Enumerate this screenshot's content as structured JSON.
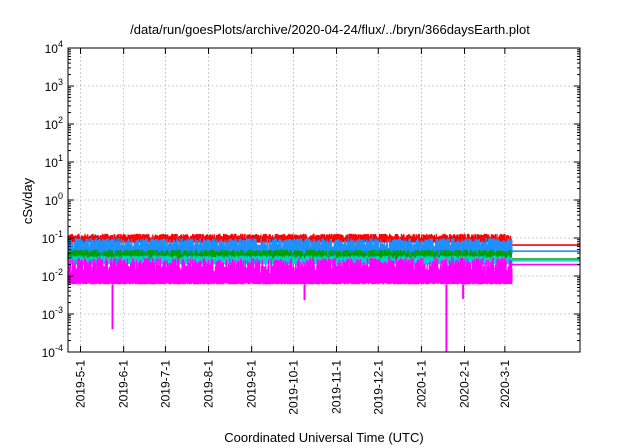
{
  "chart_data": {
    "type": "line",
    "title": "/data/run/goesPlots/archive/2020-04-24/flux/../bryn/366daysEarth.plot",
    "xlabel": "Coordinated Universal Time (UTC)",
    "ylabel": "cSv/day",
    "yscale": "log",
    "ylim": [
      0.0001,
      10000
    ],
    "xlim": [
      "2019-04-22",
      "2020-04-24"
    ],
    "grid": true,
    "legend": "none",
    "y_ticks": [
      {
        "value": 0.0001,
        "base": "10",
        "exp": "-4"
      },
      {
        "value": 0.001,
        "base": "10",
        "exp": "-3"
      },
      {
        "value": 0.01,
        "base": "10",
        "exp": "-2"
      },
      {
        "value": 0.1,
        "base": "10",
        "exp": "-1"
      },
      {
        "value": 1,
        "base": "10",
        "exp": "0"
      },
      {
        "value": 10,
        "base": "10",
        "exp": "1"
      },
      {
        "value": 100,
        "base": "10",
        "exp": "2"
      },
      {
        "value": 1000,
        "base": "10",
        "exp": "3"
      },
      {
        "value": 10000,
        "base": "10",
        "exp": "4"
      }
    ],
    "x_ticks": [
      "2019-5-1",
      "2019-6-1",
      "2019-7-1",
      "2019-8-1",
      "2019-9-1",
      "2019-10-1",
      "2019-11-1",
      "2019-12-1",
      "2020-1-1",
      "2020-2-1",
      "2020-3-1"
    ],
    "series": [
      {
        "color": "#ff0000",
        "x_range": [
          "2019-04-22",
          "2020-03-06"
        ],
        "band": [
          0.075,
          0.13
        ],
        "final_value": 0.065
      },
      {
        "color": "#1e90ff",
        "x_range": [
          "2019-04-22",
          "2020-03-06"
        ],
        "band": [
          0.035,
          0.1
        ],
        "final_value": 0.045
      },
      {
        "color": "#00a000",
        "x_range": [
          "2019-04-22",
          "2020-03-06"
        ],
        "band": [
          0.025,
          0.05
        ],
        "final_value": 0.028
      },
      {
        "color": "#00d0d0",
        "x_range": [
          "2019-04-22",
          "2020-03-06"
        ],
        "band": [
          0.02,
          0.035
        ],
        "final_value": 0.025
      },
      {
        "color": "#ff00ff",
        "x_range": [
          "2019-04-22",
          "2020-03-06"
        ],
        "band": [
          0.006,
          0.03
        ],
        "final_value": 0.02
      }
    ],
    "dropouts": [
      {
        "date": "2019-05-24",
        "value": 0.0004
      },
      {
        "date": "2019-10-09",
        "value": 0.0023
      },
      {
        "date": "2020-01-19",
        "value": 0.0001
      },
      {
        "date": "2020-01-31",
        "value": 0.0025
      }
    ]
  }
}
